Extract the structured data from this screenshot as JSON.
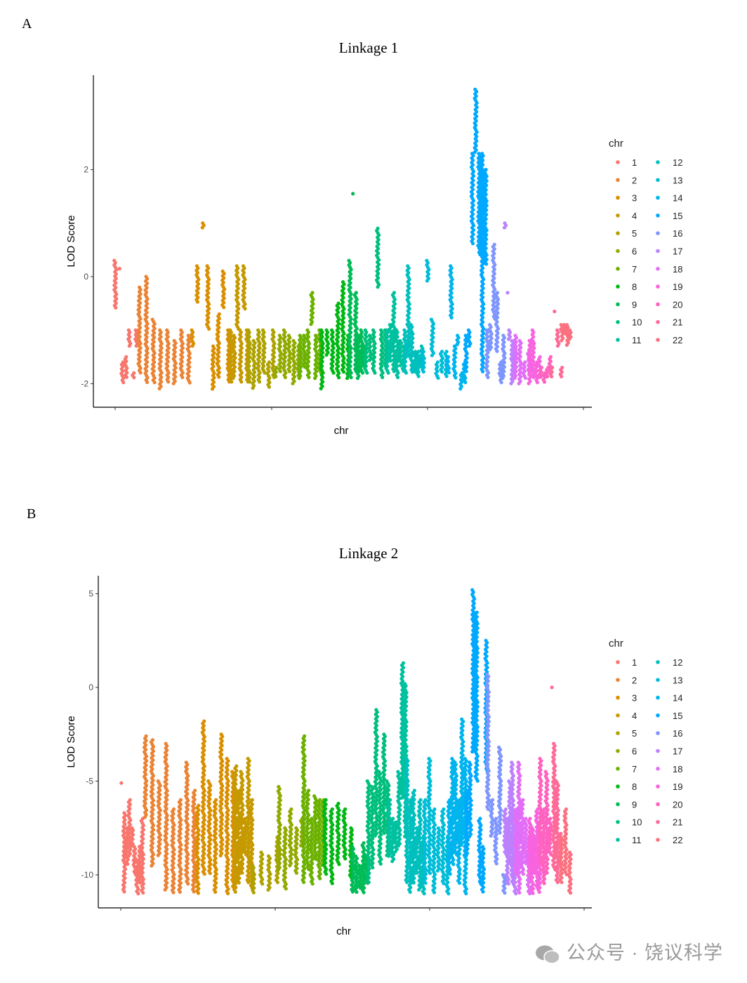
{
  "panel_labels": [
    "A",
    "B"
  ],
  "watermark": "公众号 · 饶议科学",
  "chart_data": [
    {
      "type": "scatter",
      "title": "Linkage 1",
      "xlabel": "chr",
      "ylabel": "LOD Score",
      "yticks": [
        2,
        0,
        -2
      ],
      "ylim": [
        -2.2,
        3.8
      ],
      "grid": false,
      "legend": {
        "title": "chr",
        "placement": "right",
        "entries": [
          "1",
          "2",
          "3",
          "4",
          "5",
          "6",
          "7",
          "8",
          "9",
          "10",
          "11",
          "12",
          "13",
          "14",
          "15",
          "16",
          "17",
          "18",
          "19",
          "20",
          "21",
          "22"
        ]
      },
      "series_columns_note_units": "LOD",
      "chromosomes": [
        [
          [
            -0.6,
            0.3
          ],
          [
            0.15,
            0.15
          ],
          [
            -2.0,
            -1.6
          ],
          [
            -1.9,
            -1.5
          ],
          [
            -1.3,
            -1.0
          ],
          [
            -1.9,
            -1.8
          ],
          [
            -1.3,
            -1.0
          ]
        ],
        [
          [
            -1.8,
            -0.2
          ],
          [
            -2.0,
            0.0
          ],
          [
            -2.0,
            -0.8
          ],
          [
            -2.1,
            -1.0
          ],
          [
            -2.0,
            -1.0
          ],
          [
            -2.0,
            -1.2
          ],
          [
            -1.9,
            -1.0
          ],
          [
            -2.0,
            -1.1
          ]
        ],
        [
          [
            -1.3,
            -1.0
          ],
          [
            -0.5,
            0.2
          ],
          [
            0.9,
            1.0
          ],
          [
            -1.0,
            0.2
          ],
          [
            -2.1,
            -1.3
          ],
          [
            -1.9,
            -0.7
          ],
          [
            -0.6,
            0.1
          ],
          [
            -2.0,
            -1.0
          ]
        ],
        [
          [
            -2.0,
            -1.0
          ],
          [
            -1.9,
            -1.1
          ],
          [
            -1.0,
            0.2
          ],
          [
            -2.0,
            -1.0
          ],
          [
            -0.6,
            0.2
          ],
          [
            -2.0,
            -1.0
          ]
        ],
        [
          [
            -2.0,
            -1.0
          ],
          [
            -2.1,
            -1.2
          ],
          [
            -2.0,
            -1.0
          ],
          [
            -1.8,
            -1.0
          ],
          [
            -2.1,
            -1.6
          ],
          [
            -1.9,
            -1.0
          ]
        ],
        [
          [
            -1.9,
            -1.7
          ],
          [
            -1.8,
            -1.1
          ],
          [
            -1.9,
            -1.0
          ],
          [
            -1.8,
            -1.1
          ],
          [
            -2.0,
            -1.2
          ],
          [
            -1.9,
            -1.3
          ]
        ],
        [
          [
            -1.9,
            -1.1
          ],
          [
            -1.7,
            -1.1
          ],
          [
            -1.9,
            -1.0
          ],
          [
            -0.9,
            -0.3
          ],
          [
            -1.9,
            -1.1
          ],
          [
            -1.8,
            -1.0
          ]
        ],
        [
          [
            -2.1,
            -1.0
          ],
          [
            -1.5,
            -1.0
          ],
          [
            -1.8,
            -1.0
          ],
          [
            -1.9,
            -0.5
          ],
          [
            -1.8,
            -0.1
          ],
          [
            -1.9,
            -1.1
          ]
        ],
        [
          [
            -1.9,
            0.3
          ],
          [
            1.55,
            1.55
          ],
          [
            -1.8,
            -0.3
          ],
          [
            -1.9,
            -1.1
          ],
          [
            -1.8,
            -1.0
          ],
          [
            -1.7,
            -1.3
          ]
        ],
        [
          [
            -1.8,
            -1.0
          ],
          [
            -1.6,
            -1.1
          ],
          [
            -1.8,
            -1.0
          ],
          [
            -0.2,
            0.9
          ],
          [
            -1.9,
            -1.0
          ],
          [
            -1.7,
            -1.0
          ]
        ],
        [
          [
            -1.8,
            -1.0
          ],
          [
            -1.6,
            -0.9
          ],
          [
            -1.8,
            -0.3
          ],
          [
            -1.9,
            -1.0
          ],
          [
            -1.7,
            -1.2
          ],
          [
            -1.8,
            -1.3
          ]
        ],
        [
          [
            -1.8,
            -1.0
          ],
          [
            -1.5,
            0.2
          ],
          [
            -1.8,
            -0.9
          ],
          [
            -1.8,
            -1.4
          ],
          [
            -1.9,
            -1.4
          ],
          [
            -1.7,
            -1.3
          ]
        ],
        [
          [
            -1.8,
            -1.4
          ],
          [
            -0.1,
            0.3
          ],
          [
            -1.5,
            -0.8
          ],
          [
            -1.9,
            -1.6
          ],
          [
            -1.8,
            -1.4
          ],
          [
            -1.9,
            -1.4
          ]
        ],
        [
          [
            -1.8,
            -1.5
          ],
          [
            -0.8,
            0.2
          ],
          [
            -1.9,
            -1.3
          ],
          [
            -1.3,
            -1.1
          ],
          [
            -2.1,
            -1.8
          ],
          [
            -2.0,
            -1.6
          ]
        ],
        [
          [
            -1.8,
            -1.1
          ],
          [
            -1.3,
            -1.0
          ],
          [
            0.6,
            2.3
          ],
          [
            2.3,
            3.5
          ],
          [
            0.4,
            2.3
          ],
          [
            -1.8,
            2.3
          ],
          [
            0.2,
            2.0
          ]
        ],
        [
          [
            -1.9,
            -1.0
          ],
          [
            -1.4,
            -0.9
          ],
          [
            -0.8,
            0.6
          ],
          [
            -1.4,
            -0.3
          ],
          [
            -2.0,
            -1.6
          ],
          [
            -1.9,
            -1.1
          ]
        ],
        [
          [
            0.9,
            1.0
          ],
          [
            -0.3,
            -0.3
          ],
          [
            -1.2,
            -1.0
          ],
          [
            -2.0,
            -1.2
          ],
          [
            -1.8,
            -1.3
          ]
        ],
        [
          [
            -1.9,
            -1.1
          ],
          [
            -2.0,
            -1.2
          ],
          [
            -1.9,
            -1.6
          ],
          [
            -1.8,
            -1.4
          ]
        ],
        [
          [
            -2.0,
            -1.2
          ],
          [
            -1.9,
            -1.0
          ],
          [
            -2.0,
            -1.6
          ],
          [
            -1.9,
            -1.5
          ]
        ],
        [
          [
            -1.9,
            -1.7
          ],
          [
            -2.0,
            -1.8
          ],
          [
            -1.9,
            -1.7
          ],
          [
            -1.8,
            -1.5
          ]
        ],
        [
          [
            -1.9,
            -1.7
          ],
          [
            -0.65,
            -0.65
          ],
          [
            -1.3,
            -1.0
          ],
          [
            -1.9,
            -1.7
          ]
        ],
        [
          [
            -1.2,
            -0.9
          ],
          [
            -1.1,
            -0.9
          ],
          [
            -1.3,
            -0.9
          ],
          [
            -1.2,
            -1.0
          ]
        ]
      ]
    },
    {
      "type": "scatter",
      "title": "Linkage 2",
      "xlabel": "chr",
      "ylabel": "LOD Score",
      "yticks": [
        5,
        0,
        -5,
        -10
      ],
      "ylim": [
        -11.5,
        6.2
      ],
      "grid": false,
      "legend": {
        "title": "chr",
        "placement": "right",
        "entries": [
          "1",
          "2",
          "3",
          "4",
          "5",
          "6",
          "7",
          "8",
          "9",
          "10",
          "11",
          "12",
          "13",
          "14",
          "15",
          "16",
          "17",
          "18",
          "19",
          "20",
          "21",
          "22"
        ]
      },
      "chromosomes": [
        [
          [
            -5.1,
            -5.1
          ],
          [
            -11,
            -6.7
          ],
          [
            -9.5,
            -7.5
          ],
          [
            -9,
            -6.0
          ],
          [
            -8.5,
            -7.5
          ],
          [
            -10,
            -8.5
          ],
          [
            -11,
            -9.2
          ],
          [
            -10.5,
            -8.5
          ],
          [
            -11,
            -7.0
          ]
        ],
        [
          [
            -7,
            -2.6
          ],
          [
            -9.6,
            -2.8
          ],
          [
            -9,
            -5
          ],
          [
            -10.8,
            -3.0
          ],
          [
            -11,
            -6.5
          ],
          [
            -11,
            -6.0
          ],
          [
            -10.5,
            -4.0
          ],
          [
            -11,
            -5.5
          ]
        ],
        [
          [
            -11,
            -6.3
          ],
          [
            -10,
            -1.8
          ],
          [
            -10,
            -5.0
          ],
          [
            -11,
            -6
          ],
          [
            -9,
            -2.5
          ],
          [
            -11,
            -3.8
          ],
          [
            -10.8,
            -4.5
          ]
        ],
        [
          [
            -11,
            -4.2
          ],
          [
            -10.5,
            -5.5
          ],
          [
            -10,
            -4.5
          ],
          [
            -9,
            -7.0
          ],
          [
            -10.5,
            -3.8
          ],
          [
            -10.7,
            -6
          ]
        ],
        [
          [
            -11,
            -9.5
          ],
          [
            -10.5,
            -8.8
          ],
          [
            -10.8,
            -9
          ],
          [
            -10.4,
            -8
          ]
        ],
        [
          [
            -9.8,
            -5.3
          ],
          [
            -10.8,
            -7.5
          ],
          [
            -9.5,
            -6.5
          ],
          [
            -10,
            -7.5
          ],
          [
            -8.5,
            -7.0
          ]
        ],
        [
          [
            -10.4,
            -2.6
          ],
          [
            -9.8,
            -5.5
          ],
          [
            -10.5,
            -7
          ],
          [
            -9.2,
            -5.8
          ],
          [
            -10.2,
            -6
          ],
          [
            -9.5,
            -6
          ]
        ],
        [
          [
            -10,
            -6
          ],
          [
            -10.5,
            -6.5
          ],
          [
            -9.5,
            -6.2
          ],
          [
            -9.2,
            -6.5
          ],
          [
            -10.2,
            -7.5
          ]
        ],
        [
          [
            -11,
            -8.5
          ],
          [
            -11,
            -9.0
          ],
          [
            -10.8,
            -9.5
          ],
          [
            -11,
            -8.3
          ],
          [
            -10.5,
            -9
          ]
        ],
        [
          [
            -10.5,
            -5
          ],
          [
            -9.7,
            -5.3
          ],
          [
            -8,
            -1.2
          ],
          [
            -9.5,
            -4.5
          ],
          [
            -7.8,
            -2.5
          ],
          [
            -9.0,
            -5.0
          ]
        ],
        [
          [
            -9.0,
            -6
          ],
          [
            -9.3,
            -7
          ],
          [
            -8.8,
            -7.2
          ],
          [
            -8.5,
            -4.5
          ],
          [
            -6,
            1.3
          ],
          [
            -8,
            0.2
          ]
        ],
        [
          [
            -10.5,
            -3.8
          ],
          [
            -11,
            -6
          ],
          [
            -10.5,
            -5.5
          ],
          [
            -10,
            -7.5
          ],
          [
            -10.8,
            -6
          ],
          [
            -11,
            -8
          ]
        ],
        [
          [
            -10.5,
            -6
          ],
          [
            -10,
            -3.8
          ],
          [
            -11,
            -6.5
          ],
          [
            -9.8,
            -7.5
          ],
          [
            -10.5,
            -6.5
          ],
          [
            -11,
            -8
          ]
        ],
        [
          [
            -10,
            -6
          ],
          [
            -9.5,
            -3.8
          ],
          [
            -9,
            -4
          ],
          [
            -10.5,
            -6
          ],
          [
            -8.5,
            -1.7
          ],
          [
            -11,
            -3.8
          ]
        ],
        [
          [
            -9,
            -5.5
          ],
          [
            -8,
            -4
          ],
          [
            -3.5,
            5.2
          ],
          [
            -5,
            4.0
          ],
          [
            -10.5,
            -7
          ],
          [
            -11,
            -8.5
          ],
          [
            -4.5,
            2.5
          ]
        ],
        [
          [
            -6.5,
            0.7
          ],
          [
            -8,
            -6
          ],
          [
            -9.5,
            -7
          ],
          [
            -7.8,
            -3.2
          ],
          [
            -11,
            -10
          ]
        ],
        [
          [
            -9,
            -6.5
          ],
          [
            -10.5,
            -7
          ],
          [
            -9.5,
            -5
          ],
          [
            -10.5,
            -4
          ],
          [
            -11,
            -8
          ]
        ],
        [
          [
            -10,
            -6.5
          ],
          [
            -11,
            -4
          ],
          [
            -10,
            -6
          ],
          [
            -9.5,
            -7
          ],
          [
            -11,
            -8
          ]
        ],
        [
          [
            -10,
            -7
          ],
          [
            -11,
            -7.5
          ],
          [
            -10,
            -8
          ],
          [
            -10.8,
            -6.5
          ],
          [
            -11,
            -7.8
          ]
        ],
        [
          [
            -9.5,
            -3.8
          ],
          [
            -10.5,
            -6.5
          ],
          [
            -10,
            -4.5
          ],
          [
            -9,
            -7
          ]
        ],
        [
          [
            0,
            0
          ],
          [
            -9.8,
            -3
          ],
          [
            -10.5,
            -5
          ],
          [
            -9.5,
            -7.8
          ]
        ],
        [
          [
            -10.5,
            -8
          ],
          [
            -10,
            -6.5
          ],
          [
            -11,
            -8.8
          ]
        ]
      ]
    }
  ],
  "colors": [
    "#F8766D",
    "#EB8335",
    "#DA8F00",
    "#C69900",
    "#AEA200",
    "#92AA00",
    "#6BB100",
    "#00B813",
    "#00BC56",
    "#00BF7D",
    "#00C19F",
    "#00C0BE",
    "#00BDD8",
    "#00B5EE",
    "#00A9FF",
    "#7F96FF",
    "#BC81FF",
    "#E26EF7",
    "#F863DF",
    "#FF62BF",
    "#FF6A98",
    "#FC717F"
  ]
}
